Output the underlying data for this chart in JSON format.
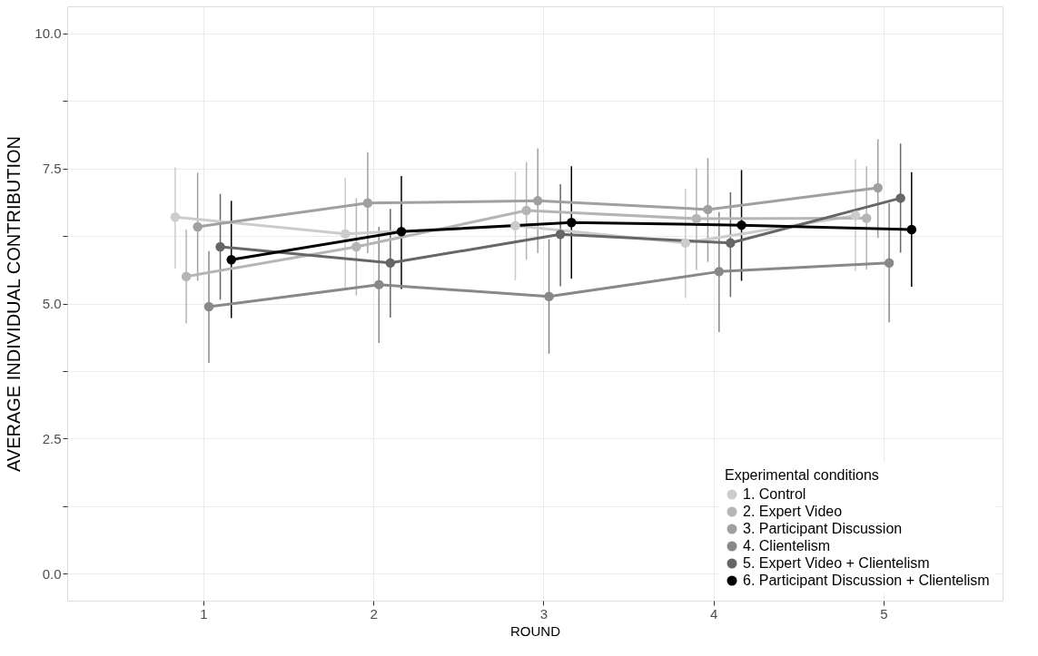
{
  "chart_data": {
    "type": "line",
    "xlabel": "ROUND",
    "ylabel": "AVERAGE INDIVIDUAL CONTRIBUTION",
    "legend_title": "Experimental conditions",
    "legend": "bottom right",
    "grid": true,
    "marker": "circle",
    "line_style": "solid",
    "xlim": [
      0.2,
      5.7
    ],
    "xticks": [
      1,
      2,
      3,
      4,
      5
    ],
    "ylim": [
      -0.5,
      10.5
    ],
    "yticks": [
      {
        "value": 0,
        "label": "0.0"
      },
      {
        "value": 1.25,
        "label": null
      },
      {
        "value": 2.5,
        "label": "2.5"
      },
      {
        "value": 3.75,
        "label": null
      },
      {
        "value": 5,
        "label": "5.0"
      },
      {
        "value": 6.25,
        "label": null
      },
      {
        "value": 7.5,
        "label": "7.5"
      },
      {
        "value": 8.75,
        "label": null
      },
      {
        "value": 10,
        "label": "10.0"
      }
    ],
    "series": [
      {
        "name": "1. Control",
        "color": "#cccccc",
        "x": [
          0.835,
          1.835,
          2.835,
          3.835,
          4.835
        ],
        "values": [
          6.6,
          6.29,
          6.44,
          6.12,
          6.63
        ],
        "errors": [
          [
            5.65,
            7.52
          ],
          [
            5.29,
            7.33
          ],
          [
            5.43,
            7.44
          ],
          [
            5.1,
            7.13
          ],
          [
            5.6,
            7.67
          ]
        ]
      },
      {
        "name": "2. Expert Video",
        "color": "#b5b5b5",
        "x": [
          0.9,
          1.9,
          2.9,
          3.9,
          4.9
        ],
        "values": [
          5.5,
          6.05,
          6.72,
          6.57,
          6.58
        ],
        "errors": [
          [
            4.63,
            6.37
          ],
          [
            5.15,
            6.95
          ],
          [
            5.81,
            7.62
          ],
          [
            5.62,
            7.5
          ],
          [
            5.63,
            7.54
          ]
        ]
      },
      {
        "name": "3. Participant Discussion",
        "color": "#a0a0a0",
        "x": [
          0.967,
          1.967,
          2.967,
          3.967,
          4.967
        ],
        "values": [
          6.42,
          6.86,
          6.9,
          6.74,
          7.14
        ],
        "errors": [
          [
            5.42,
            7.42
          ],
          [
            5.93,
            7.8
          ],
          [
            5.93,
            7.87
          ],
          [
            5.77,
            7.69
          ],
          [
            6.21,
            8.04
          ]
        ]
      },
      {
        "name": "4. Clientelism",
        "color": "#888888",
        "x": [
          1.033,
          2.033,
          3.033,
          4.033,
          5.033
        ],
        "values": [
          4.94,
          5.35,
          5.13,
          5.59,
          5.75
        ],
        "errors": [
          [
            3.9,
            5.97
          ],
          [
            4.27,
            6.42
          ],
          [
            4.07,
            6.19
          ],
          [
            4.47,
            6.69
          ],
          [
            4.65,
            6.86
          ]
        ]
      },
      {
        "name": "5. Expert Video + Clientelism",
        "color": "#666666",
        "x": [
          1.1,
          2.1,
          3.1,
          4.1,
          5.1
        ],
        "values": [
          6.05,
          5.75,
          6.28,
          6.12,
          6.95
        ],
        "errors": [
          [
            5.07,
            7.03
          ],
          [
            4.74,
            6.75
          ],
          [
            5.32,
            7.21
          ],
          [
            5.12,
            7.06
          ],
          [
            5.94,
            7.96
          ]
        ]
      },
      {
        "name": "6. Participant Discussion + Clientelism",
        "color": "#000000",
        "x": [
          1.165,
          2.165,
          3.165,
          4.165,
          5.165
        ],
        "values": [
          5.81,
          6.33,
          6.5,
          6.45,
          6.37
        ],
        "errors": [
          [
            4.73,
            6.9
          ],
          [
            5.27,
            7.36
          ],
          [
            5.46,
            7.54
          ],
          [
            5.42,
            7.47
          ],
          [
            5.31,
            7.43
          ]
        ]
      }
    ]
  }
}
